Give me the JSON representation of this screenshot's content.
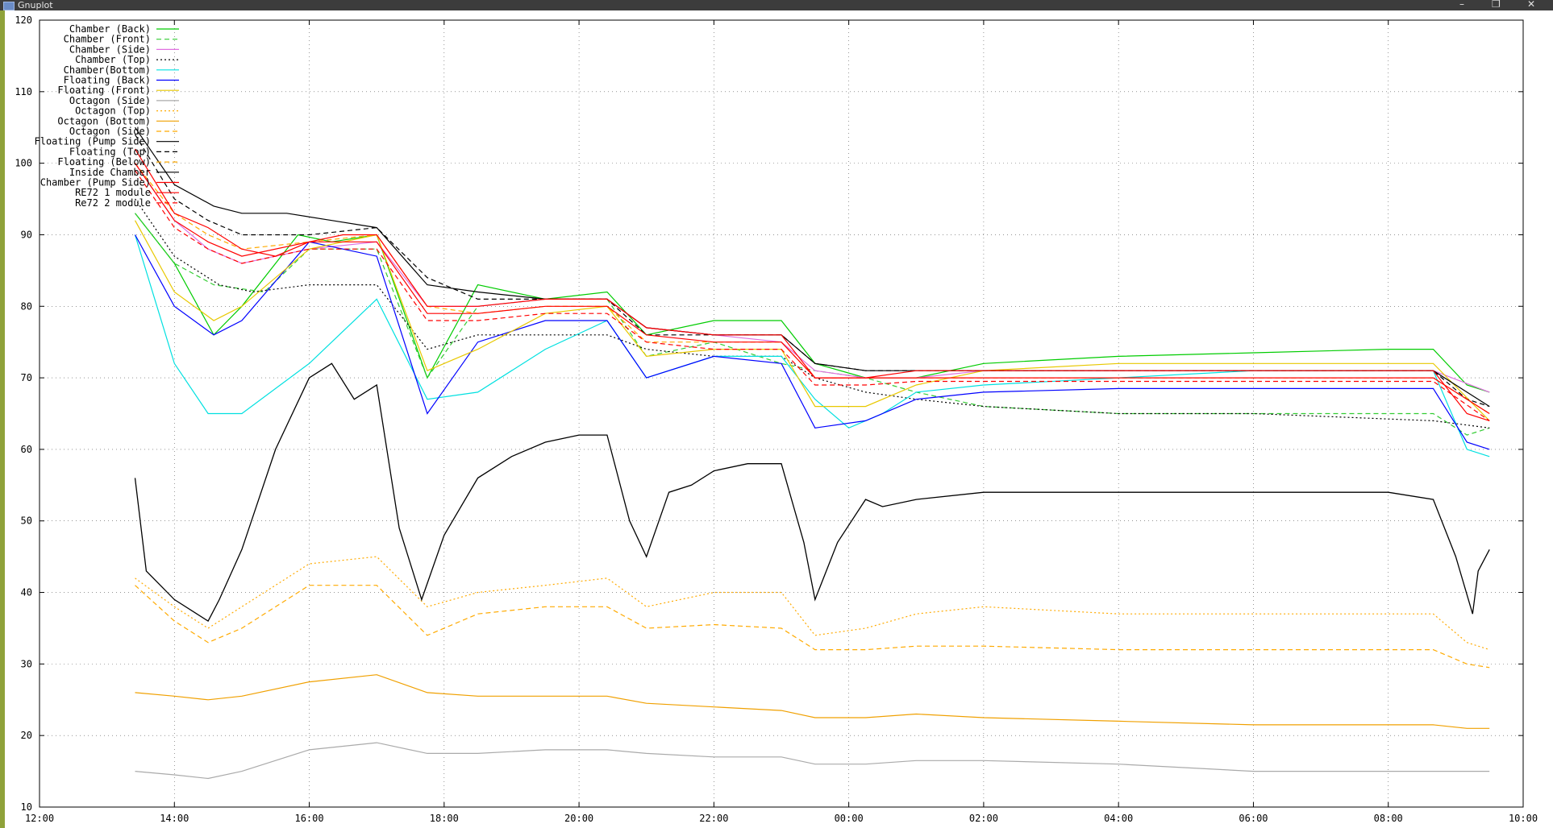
{
  "window": {
    "title": "Gnuplot",
    "controls": {
      "minimize": "–",
      "restore": "❐",
      "close": "✕"
    }
  },
  "chart_data": {
    "type": "line",
    "title": "",
    "xlabel": "",
    "ylabel": "",
    "ylim": [
      10,
      120
    ],
    "xlim": [
      "12:00",
      "10:00"
    ],
    "grid": true,
    "legend_position": "top-left",
    "xticks": [
      "12:00",
      "14:00",
      "16:00",
      "18:00",
      "20:00",
      "22:00",
      "00:00",
      "02:00",
      "04:00",
      "06:00",
      "08:00",
      "10:00"
    ],
    "yticks": [
      10,
      20,
      30,
      40,
      50,
      60,
      70,
      80,
      90,
      100,
      110,
      120
    ],
    "x_note": "x values are clock times, the axis runs from 12:00 through midnight to 10:00 the next day",
    "series": [
      {
        "name": "Chamber (Back)",
        "color": "#00cc00",
        "dash": "solid",
        "x": [
          "13:25",
          "14:00",
          "14:35",
          "15:00",
          "15:50",
          "16:20",
          "17:00",
          "17:45",
          "18:30",
          "19:30",
          "20:25",
          "21:00",
          "22:00",
          "23:00",
          "23:30",
          "00:15",
          "01:00",
          "02:00",
          "04:00",
          "06:00",
          "08:00",
          "08:40",
          "09:10",
          "09:30"
        ],
        "y": [
          93,
          86,
          76,
          80,
          90,
          89,
          90,
          70,
          83,
          81,
          82,
          76,
          78,
          78,
          72,
          70,
          70,
          72,
          73,
          73.5,
          74,
          74,
          69,
          68
        ]
      },
      {
        "name": "Chamber (Front)",
        "color": "#33cc33",
        "dash": "dashed",
        "x": [
          "13:25",
          "14:00",
          "14:35",
          "15:20",
          "16:00",
          "17:00",
          "17:45",
          "18:30",
          "19:30",
          "20:25",
          "21:00",
          "22:00",
          "23:00",
          "23:30",
          "00:15",
          "01:00",
          "02:00",
          "04:00",
          "06:00",
          "08:40",
          "09:10",
          "09:30"
        ],
        "y": [
          93,
          86,
          83,
          82,
          88,
          88,
          70,
          80,
          81,
          81,
          73,
          75,
          72,
          71,
          70,
          68,
          66,
          65,
          65,
          65,
          62,
          63
        ]
      },
      {
        "name": "Chamber (Side)",
        "color": "#e070e0",
        "dash": "solid",
        "x": [
          "13:25",
          "14:00",
          "14:30",
          "15:00",
          "16:00",
          "17:00",
          "17:45",
          "18:30",
          "19:30",
          "20:25",
          "21:00",
          "22:00",
          "23:00",
          "23:30",
          "00:15",
          "01:00",
          "02:00",
          "04:00",
          "06:00",
          "08:40",
          "09:30"
        ],
        "y": [
          100,
          92,
          88,
          86,
          88,
          89,
          80,
          80,
          81,
          81,
          77,
          76,
          75,
          71,
          70,
          70,
          71,
          71,
          71,
          71,
          68
        ]
      },
      {
        "name": "Chamber (Top)",
        "color": "#000000",
        "dash": "dotted",
        "x": [
          "13:25",
          "14:00",
          "14:40",
          "15:10",
          "16:00",
          "17:00",
          "17:45",
          "18:30",
          "19:30",
          "20:25",
          "21:00",
          "22:00",
          "23:00",
          "23:30",
          "00:15",
          "01:00",
          "02:00",
          "04:00",
          "06:00",
          "08:40",
          "09:30"
        ],
        "y": [
          95,
          87,
          83,
          82,
          83,
          83,
          74,
          76,
          76,
          76,
          74,
          73,
          73,
          70,
          68,
          67,
          66,
          65,
          65,
          64,
          63
        ]
      },
      {
        "name": "Chamber(Bottom)",
        "color": "#00e0e0",
        "dash": "solid",
        "x": [
          "13:25",
          "14:00",
          "14:30",
          "15:00",
          "16:00",
          "17:00",
          "17:45",
          "18:30",
          "19:30",
          "20:25",
          "21:00",
          "22:00",
          "23:00",
          "23:30",
          "00:00",
          "00:30",
          "01:00",
          "02:00",
          "04:00",
          "06:00",
          "08:40",
          "09:10",
          "09:30"
        ],
        "y": [
          90,
          72,
          65,
          65,
          72,
          81,
          67,
          68,
          74,
          78,
          70,
          73,
          73,
          67,
          63,
          65,
          68,
          69,
          70,
          71,
          71,
          60,
          59
        ]
      },
      {
        "name": "Floating (Back)",
        "color": "#0000ff",
        "dash": "solid",
        "x": [
          "13:25",
          "14:00",
          "14:35",
          "15:00",
          "16:00",
          "17:00",
          "17:45",
          "18:30",
          "19:30",
          "20:25",
          "21:00",
          "22:00",
          "23:00",
          "23:30",
          "00:15",
          "01:00",
          "02:00",
          "04:00",
          "06:00",
          "08:40",
          "09:10",
          "09:30"
        ],
        "y": [
          90,
          80,
          76,
          78,
          89,
          87,
          65,
          75,
          78,
          78,
          70,
          73,
          72,
          63,
          64,
          67,
          68,
          68.5,
          68.5,
          68.5,
          61,
          60
        ]
      },
      {
        "name": "Floating (Front)",
        "color": "#e8c800",
        "dash": "solid",
        "x": [
          "13:25",
          "14:00",
          "14:35",
          "15:00",
          "16:00",
          "17:00",
          "17:45",
          "18:30",
          "19:30",
          "20:25",
          "21:00",
          "22:00",
          "23:00",
          "23:30",
          "00:15",
          "01:00",
          "02:00",
          "04:00",
          "06:00",
          "08:40",
          "09:30"
        ],
        "y": [
          92,
          82,
          78,
          80,
          88,
          90,
          71,
          74,
          79,
          80,
          73,
          74,
          74,
          66,
          66,
          69,
          71,
          72,
          72,
          72,
          64
        ]
      },
      {
        "name": "Octagon (Side)",
        "color": "#aaaaaa",
        "dash": "solid",
        "x": [
          "13:25",
          "14:00",
          "14:30",
          "15:00",
          "16:00",
          "17:00",
          "17:45",
          "18:30",
          "19:30",
          "20:25",
          "21:00",
          "22:00",
          "23:00",
          "23:30",
          "00:15",
          "01:00",
          "02:00",
          "04:00",
          "06:00",
          "08:40",
          "09:30"
        ],
        "y": [
          15,
          14.5,
          14,
          15,
          18,
          19,
          17.5,
          17.5,
          18,
          18,
          17.5,
          17,
          17,
          16,
          16,
          16.5,
          16.5,
          16,
          15,
          15,
          15
        ]
      },
      {
        "name": "Octagon (Top)",
        "color": "#ffaa00",
        "dash": "dotted",
        "x": [
          "13:25",
          "14:00",
          "14:30",
          "15:00",
          "16:00",
          "17:00",
          "17:45",
          "18:30",
          "19:30",
          "20:25",
          "21:00",
          "22:00",
          "23:00",
          "23:30",
          "00:15",
          "01:00",
          "02:00",
          "04:00",
          "06:00",
          "08:40",
          "09:10",
          "09:30"
        ],
        "y": [
          42,
          38,
          35,
          38,
          44,
          45,
          38,
          40,
          41,
          42,
          38,
          40,
          40,
          34,
          35,
          37,
          38,
          37,
          37,
          37,
          33,
          32
        ]
      },
      {
        "name": "Octagon (Bottom)",
        "color": "#f0a000",
        "dash": "solid",
        "x": [
          "13:25",
          "14:00",
          "14:30",
          "15:00",
          "16:00",
          "17:00",
          "17:45",
          "18:30",
          "19:30",
          "20:25",
          "21:00",
          "22:00",
          "23:00",
          "23:30",
          "00:15",
          "01:00",
          "02:00",
          "04:00",
          "06:00",
          "08:40",
          "09:10",
          "09:30"
        ],
        "y": [
          26,
          25.5,
          25,
          25.5,
          27.5,
          28.5,
          26,
          25.5,
          25.5,
          25.5,
          24.5,
          24,
          23.5,
          22.5,
          22.5,
          23,
          22.5,
          22,
          21.5,
          21.5,
          21,
          21
        ]
      },
      {
        "name": "Octagon (Side)",
        "color": "#ffaa00",
        "dash": "dashed",
        "x": [
          "13:25",
          "14:00",
          "14:30",
          "15:00",
          "16:00",
          "17:00",
          "17:45",
          "18:30",
          "19:30",
          "20:25",
          "21:00",
          "22:00",
          "23:00",
          "23:30",
          "00:15",
          "01:00",
          "02:00",
          "04:00",
          "06:00",
          "08:40",
          "09:10",
          "09:30"
        ],
        "y": [
          41,
          36,
          33,
          35,
          41,
          41,
          34,
          37,
          38,
          38,
          35,
          35.5,
          35,
          32,
          32,
          32.5,
          32.5,
          32,
          32,
          32,
          30,
          29.5
        ]
      },
      {
        "name": "Floating (Pump Side)",
        "color": "#000000",
        "dash": "solid",
        "x": [
          "13:25",
          "14:00",
          "14:35",
          "15:00",
          "15:40",
          "16:20",
          "17:00",
          "17:45",
          "18:30",
          "19:30",
          "20:25",
          "21:00",
          "22:00",
          "23:00",
          "23:30",
          "00:15",
          "01:00",
          "02:00",
          "04:00",
          "06:00",
          "08:40",
          "09:10",
          "09:30"
        ],
        "y": [
          105,
          97,
          94,
          93,
          93,
          92,
          91,
          83,
          82,
          81,
          81,
          77,
          76,
          76,
          72,
          71,
          71,
          71,
          71,
          71,
          71,
          68,
          66
        ]
      },
      {
        "name": "Floating (Top)",
        "color": "#000000",
        "dash": "dashed",
        "x": [
          "13:25",
          "14:00",
          "14:30",
          "15:00",
          "16:00",
          "17:00",
          "17:45",
          "18:30",
          "19:30",
          "20:25",
          "21:00",
          "22:00",
          "23:00",
          "23:30",
          "00:15",
          "01:00",
          "02:00",
          "04:00",
          "06:00",
          "08:40",
          "09:10",
          "09:30"
        ],
        "y": [
          104,
          95,
          92,
          90,
          90,
          91,
          84,
          81,
          81,
          81,
          76,
          76,
          76,
          72,
          71,
          71,
          71,
          71,
          71,
          71,
          67,
          66
        ]
      },
      {
        "name": "Floating (Below)",
        "color": "#ffaa00",
        "dash": "dashed",
        "x": [
          "13:25",
          "14:00",
          "14:30",
          "15:00",
          "16:00",
          "17:00",
          "17:45",
          "18:30",
          "19:30",
          "20:25",
          "21:00",
          "22:00",
          "23:00",
          "23:30",
          "00:15",
          "01:00",
          "02:00",
          "04:00",
          "06:00",
          "08:40",
          "09:30"
        ],
        "y": [
          100,
          93,
          90,
          88,
          89,
          90,
          80,
          79,
          80,
          80,
          75,
          75,
          75,
          70,
          70,
          70,
          70,
          70,
          70,
          70,
          65
        ]
      },
      {
        "name": "Inside Chamber",
        "color": "#000000",
        "dash": "solid",
        "x": [
          "13:25",
          "13:35",
          "14:00",
          "14:30",
          "14:40",
          "15:00",
          "15:30",
          "16:00",
          "16:20",
          "16:40",
          "17:00",
          "17:20",
          "17:40",
          "18:00",
          "18:30",
          "19:00",
          "19:30",
          "20:00",
          "20:25",
          "20:45",
          "21:00",
          "21:20",
          "21:40",
          "22:00",
          "22:30",
          "23:00",
          "23:20",
          "23:30",
          "23:50",
          "00:15",
          "00:30",
          "01:00",
          "02:00",
          "04:00",
          "06:00",
          "08:00",
          "08:40",
          "09:00",
          "09:15",
          "09:20",
          "09:30"
        ],
        "y": [
          56,
          43,
          39,
          36,
          39,
          46,
          60,
          70,
          72,
          67,
          69,
          49,
          39,
          48,
          56,
          59,
          61,
          62,
          62,
          50,
          45,
          54,
          55,
          57,
          58,
          58,
          47,
          39,
          47,
          53,
          52,
          53,
          54,
          54,
          54,
          54,
          53,
          45,
          37,
          43,
          46
        ]
      },
      {
        "name": "Chamber (Pump Side)",
        "color": "#ff0000",
        "dash": "solid",
        "x": [
          "13:25",
          "14:00",
          "14:30",
          "15:00",
          "15:30",
          "16:00",
          "16:30",
          "17:00",
          "17:45",
          "18:30",
          "19:30",
          "20:25",
          "21:00",
          "22:00",
          "23:00",
          "23:30",
          "00:15",
          "01:00",
          "02:00",
          "04:00",
          "06:00",
          "08:40",
          "09:10",
          "09:30"
        ],
        "y": [
          102,
          93,
          91,
          88,
          87,
          89,
          90,
          90,
          80,
          80,
          81,
          81,
          77,
          76,
          76,
          70,
          70,
          71,
          71,
          71,
          71,
          71,
          65,
          64
        ]
      },
      {
        "name": "RE72 1 module",
        "color": "#ff0000",
        "dash": "solid",
        "x": [
          "13:25",
          "14:00",
          "14:30",
          "15:00",
          "16:00",
          "17:00",
          "17:45",
          "18:30",
          "19:30",
          "20:25",
          "21:00",
          "22:00",
          "23:00",
          "23:30",
          "00:15",
          "01:00",
          "02:00",
          "04:00",
          "06:00",
          "08:40",
          "09:30"
        ],
        "y": [
          100,
          92,
          89,
          87,
          89,
          89,
          79,
          79,
          80,
          80,
          76,
          75,
          75,
          70,
          70,
          70,
          70,
          70,
          70,
          70,
          65
        ]
      },
      {
        "name": "Re72 2 module",
        "color": "#ff0000",
        "dash": "dashed",
        "x": [
          "13:25",
          "14:00",
          "14:30",
          "15:00",
          "16:00",
          "17:00",
          "17:45",
          "18:30",
          "19:30",
          "20:25",
          "21:00",
          "22:00",
          "23:00",
          "23:30",
          "00:15",
          "01:00",
          "02:00",
          "04:00",
          "06:00",
          "08:40",
          "09:30"
        ],
        "y": [
          99,
          91,
          88,
          86,
          88,
          88,
          78,
          78,
          79,
          79,
          75,
          74,
          74,
          69,
          69,
          69.5,
          69.5,
          69.5,
          69.5,
          69.5,
          64
        ]
      }
    ]
  }
}
